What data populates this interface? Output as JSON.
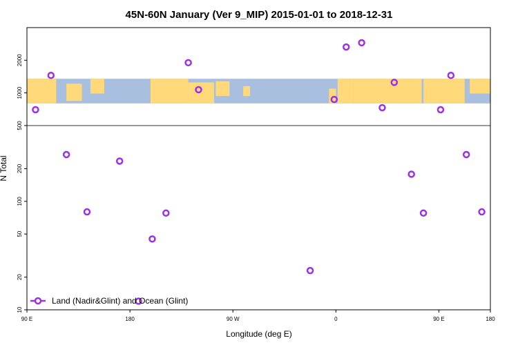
{
  "chart_data": {
    "type": "scatter",
    "title": "45N-60N January (Ver 9_MIP)   2015-01-01 to 2018-12-31",
    "xlabel": "Longitude (deg E)",
    "ylabel": "N Total",
    "y_scale": "log",
    "xlim": [
      -90,
      180
    ],
    "ylim": [
      10,
      4000
    ],
    "x_ticks": [
      {
        "value": -90,
        "label": "90 E"
      },
      {
        "value": -30,
        "label": "180"
      },
      {
        "value": 30,
        "label": "90 W"
      },
      {
        "value": 90,
        "label": "0"
      },
      {
        "value": 150,
        "label": "90 E"
      },
      {
        "value": 180,
        "label": "180"
      }
    ],
    "y_ticks": [
      {
        "value": 10,
        "label": "10"
      },
      {
        "value": 20,
        "label": "20"
      },
      {
        "value": 50,
        "label": "50"
      },
      {
        "value": 100,
        "label": "100"
      },
      {
        "value": 200,
        "label": "200"
      },
      {
        "value": 500,
        "label": "500"
      },
      {
        "value": 1000,
        "label": "1000"
      },
      {
        "value": 2000,
        "label": "2000"
      }
    ],
    "map_strip": {
      "y_range": [
        800,
        1350
      ],
      "land_color": "#ffd97a",
      "ocean_color": "#a9bfe0"
    },
    "separator_y": 500,
    "series": [
      {
        "name": "Land (Nadir&Glint) and Ocean (Glint)",
        "color": "#9b30e8",
        "x": [
          -85,
          -76,
          -67,
          -55,
          -36,
          -25,
          -17,
          -9,
          4,
          10,
          75,
          89,
          96,
          105,
          117,
          124,
          134,
          141,
          151,
          157,
          166,
          175
        ],
        "y": [
          700,
          1450,
          270,
          80,
          235,
          12,
          45,
          78,
          1900,
          1070,
          23,
          870,
          2650,
          2900,
          730,
          1250,
          178,
          78,
          700,
          1450,
          270,
          80
        ]
      }
    ],
    "legend_position": "bottom-left"
  }
}
